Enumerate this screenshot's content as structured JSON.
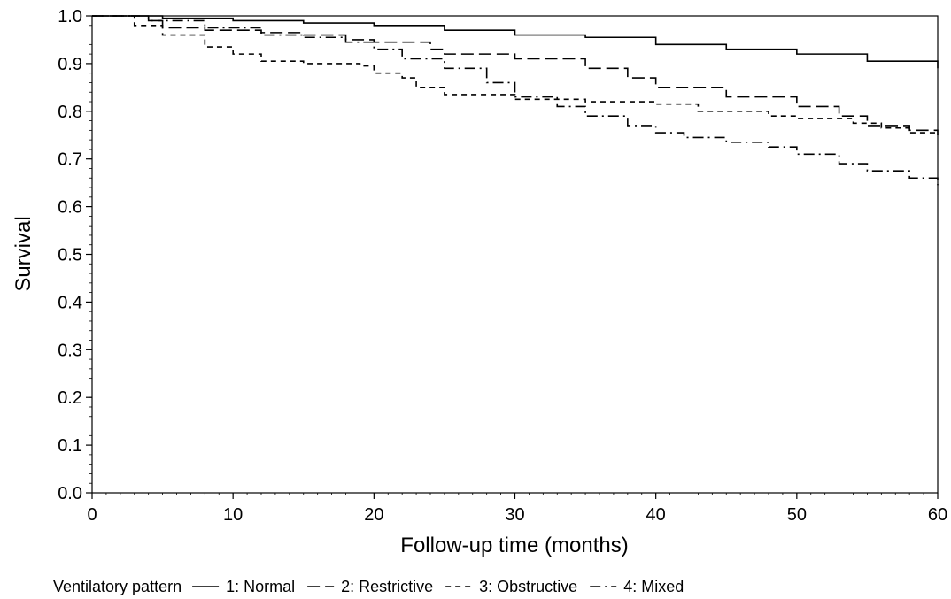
{
  "chart_data": {
    "type": "line",
    "title": "",
    "xlabel": "Follow-up time (months)",
    "ylabel": "Survival",
    "xlim": [
      0,
      60
    ],
    "ylim": [
      0.0,
      1.0
    ],
    "x_ticks": [
      0,
      10,
      20,
      30,
      40,
      50,
      60
    ],
    "x_tick_labels": [
      "0",
      "10",
      "20",
      "30",
      "40",
      "50",
      "60"
    ],
    "y_ticks": [
      0.0,
      0.1,
      0.2,
      0.3,
      0.4,
      0.5,
      0.6,
      0.7,
      0.8,
      0.9,
      1.0
    ],
    "y_tick_labels": [
      "0.0",
      "0.1",
      "0.2",
      "0.3",
      "0.4",
      "0.5",
      "0.6",
      "0.7",
      "0.8",
      "0.9",
      "1.0"
    ],
    "grid": false,
    "step": true,
    "legend": {
      "title": "Ventilatory pattern",
      "placement": "bottom"
    },
    "series": [
      {
        "name": "1: Normal",
        "line_style": "solid",
        "points": [
          [
            0,
            1.0
          ],
          [
            5,
            0.995
          ],
          [
            10,
            0.99
          ],
          [
            15,
            0.985
          ],
          [
            20,
            0.98
          ],
          [
            25,
            0.97
          ],
          [
            30,
            0.96
          ],
          [
            35,
            0.955
          ],
          [
            40,
            0.94
          ],
          [
            45,
            0.93
          ],
          [
            50,
            0.92
          ],
          [
            55,
            0.905
          ],
          [
            60,
            0.89
          ]
        ]
      },
      {
        "name": "2: Restrictive",
        "line_style": "long-dash",
        "points": [
          [
            0,
            1.0
          ],
          [
            4,
            0.99
          ],
          [
            5,
            0.975
          ],
          [
            8,
            0.97
          ],
          [
            12,
            0.965
          ],
          [
            15,
            0.96
          ],
          [
            18,
            0.95
          ],
          [
            20,
            0.945
          ],
          [
            24,
            0.93
          ],
          [
            25,
            0.92
          ],
          [
            30,
            0.91
          ],
          [
            35,
            0.89
          ],
          [
            38,
            0.87
          ],
          [
            40,
            0.85
          ],
          [
            45,
            0.83
          ],
          [
            50,
            0.81
          ],
          [
            53,
            0.79
          ],
          [
            55,
            0.77
          ],
          [
            58,
            0.76
          ],
          [
            60,
            0.75
          ]
        ]
      },
      {
        "name": "3: Obstructive",
        "line_style": "short-dash",
        "points": [
          [
            0,
            1.0
          ],
          [
            3,
            0.98
          ],
          [
            5,
            0.96
          ],
          [
            8,
            0.935
          ],
          [
            10,
            0.92
          ],
          [
            12,
            0.905
          ],
          [
            15,
            0.9
          ],
          [
            19,
            0.895
          ],
          [
            20,
            0.88
          ],
          [
            22,
            0.87
          ],
          [
            23,
            0.85
          ],
          [
            25,
            0.835
          ],
          [
            30,
            0.825
          ],
          [
            35,
            0.82
          ],
          [
            40,
            0.815
          ],
          [
            43,
            0.8
          ],
          [
            48,
            0.79
          ],
          [
            50,
            0.785
          ],
          [
            54,
            0.775
          ],
          [
            56,
            0.765
          ],
          [
            58,
            0.755
          ],
          [
            60,
            0.75
          ]
        ]
      },
      {
        "name": "4: Mixed",
        "line_style": "dash-dot",
        "points": [
          [
            0,
            1.0
          ],
          [
            4,
            0.99
          ],
          [
            8,
            0.975
          ],
          [
            12,
            0.96
          ],
          [
            15,
            0.955
          ],
          [
            18,
            0.945
          ],
          [
            20,
            0.93
          ],
          [
            22,
            0.91
          ],
          [
            25,
            0.89
          ],
          [
            28,
            0.86
          ],
          [
            30,
            0.83
          ],
          [
            33,
            0.81
          ],
          [
            35,
            0.79
          ],
          [
            38,
            0.77
          ],
          [
            40,
            0.755
          ],
          [
            42,
            0.745
          ],
          [
            45,
            0.735
          ],
          [
            48,
            0.725
          ],
          [
            50,
            0.71
          ],
          [
            53,
            0.69
          ],
          [
            55,
            0.675
          ],
          [
            58,
            0.66
          ],
          [
            60,
            0.645
          ]
        ]
      }
    ]
  }
}
